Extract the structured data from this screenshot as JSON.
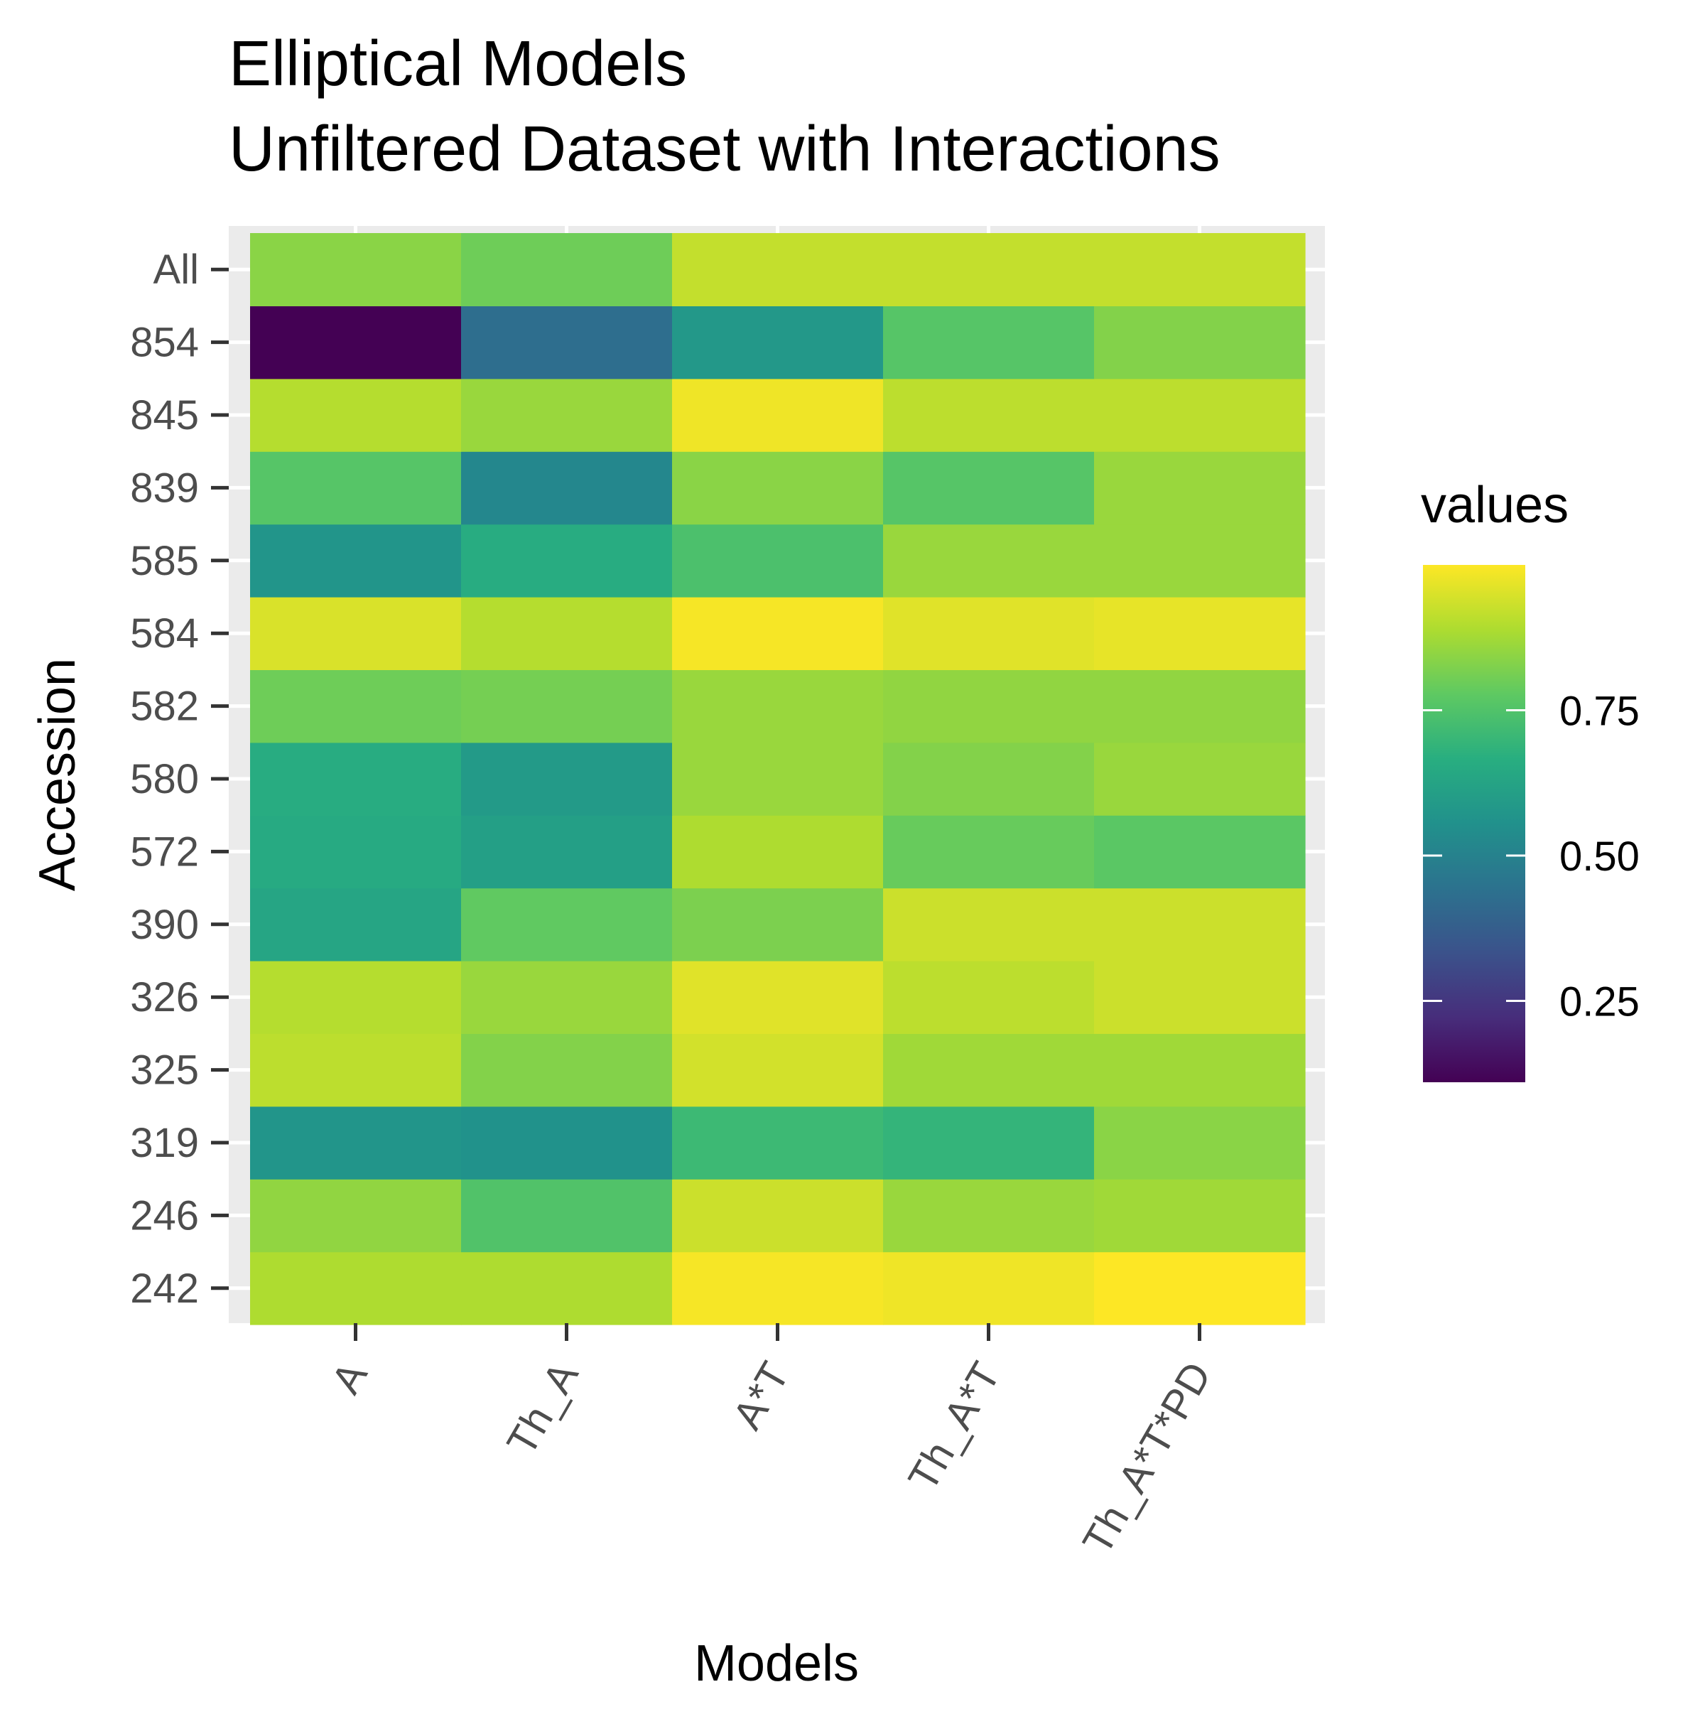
{
  "chart_data": {
    "type": "heatmap",
    "title": [
      "Elliptical Models",
      "Unfiltered Dataset with Interactions"
    ],
    "xlabel": "Models",
    "ylabel": "Accession",
    "x_categories": [
      "A",
      "Th_A",
      "A*T",
      "Th_A*T",
      "Th_A*T*PD"
    ],
    "y_categories": [
      "242",
      "246",
      "319",
      "325",
      "326",
      "390",
      "572",
      "580",
      "582",
      "584",
      "585",
      "839",
      "845",
      "854",
      "All"
    ],
    "values": {
      "All": [
        0.84,
        0.8,
        0.92,
        0.92,
        0.92
      ],
      "854": [
        0.11,
        0.43,
        0.58,
        0.76,
        0.83
      ],
      "845": [
        0.9,
        0.86,
        0.98,
        0.91,
        0.91
      ],
      "839": [
        0.76,
        0.52,
        0.84,
        0.76,
        0.86
      ],
      "585": [
        0.57,
        0.66,
        0.74,
        0.86,
        0.86
      ],
      "584": [
        0.95,
        0.9,
        0.99,
        0.96,
        0.97
      ],
      "582": [
        0.8,
        0.81,
        0.86,
        0.85,
        0.85
      ],
      "580": [
        0.66,
        0.59,
        0.86,
        0.83,
        0.86
      ],
      "572": [
        0.65,
        0.61,
        0.89,
        0.79,
        0.77
      ],
      "390": [
        0.63,
        0.78,
        0.82,
        0.93,
        0.93
      ],
      "326": [
        0.9,
        0.86,
        0.96,
        0.91,
        0.93
      ],
      "325": [
        0.91,
        0.83,
        0.94,
        0.87,
        0.87
      ],
      "319": [
        0.57,
        0.56,
        0.71,
        0.69,
        0.84
      ],
      "246": [
        0.85,
        0.75,
        0.93,
        0.86,
        0.87
      ],
      "242": [
        0.89,
        0.89,
        0.99,
        0.98,
        1.0
      ]
    },
    "legend": {
      "title": "values",
      "ticks": [
        0.25,
        0.5,
        0.75
      ],
      "tick_labels": [
        "0.25",
        "0.50",
        "0.75"
      ],
      "range": [
        0.11,
        1.0
      ],
      "position": "right"
    },
    "colorscale": "viridis",
    "colors": {
      "panel_background": "#ebebeb",
      "grid": "#ffffff",
      "tick_text": "#4d4d4d",
      "tick_mark": "#333333"
    }
  }
}
